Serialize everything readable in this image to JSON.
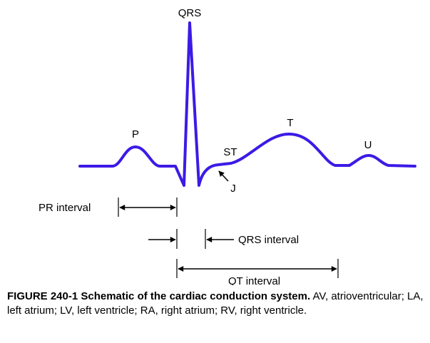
{
  "diagram": {
    "waveform_color": "#3d1ae6",
    "labels": {
      "qrs": "QRS",
      "p": "P",
      "st": "ST",
      "t": "T",
      "u": "U",
      "j": "J"
    },
    "intervals": {
      "pr": "PR interval",
      "qrs": "QRS interval",
      "qt": "QT interval"
    }
  },
  "caption": {
    "title": "FIGURE 240-1 Schematic of the cardiac conduction system.",
    "text": " AV, atrioventricular; LA, left atrium; LV, left ventricle; RA, right atrium; RV, right ventricle."
  }
}
